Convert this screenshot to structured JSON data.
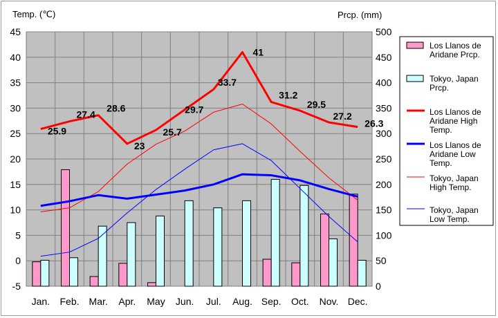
{
  "chart_data": {
    "type": "bar",
    "title": "",
    "categories": [
      "Jan.",
      "Feb.",
      "Mar.",
      "Apr.",
      "May",
      "Jun.",
      "Jul.",
      "Aug.",
      "Sep.",
      "Oct.",
      "Nov.",
      "Dec."
    ],
    "y_left": {
      "label": "Temp. (℃)",
      "range": [
        -5,
        45
      ],
      "ticks": [
        -5,
        0,
        5,
        10,
        15,
        20,
        25,
        30,
        35,
        40,
        45
      ]
    },
    "y_right": {
      "label": "Prcp. (mm)",
      "range": [
        0,
        500
      ],
      "ticks": [
        0,
        50,
        100,
        150,
        200,
        250,
        300,
        350,
        400,
        450,
        500
      ]
    },
    "grid": true,
    "legend_position": "right",
    "series": [
      {
        "name": "Los Llanos de Aridane Prcp.",
        "kind": "bar",
        "axis": "right",
        "color": "#ff99cc",
        "values": [
          48,
          229,
          19,
          45,
          7,
          0,
          0,
          0,
          53,
          46,
          142,
          181
        ]
      },
      {
        "name": "Tokyo, Japan Prcp.",
        "kind": "bar",
        "axis": "right",
        "color": "#ccffff",
        "values": [
          51,
          56,
          118,
          125,
          138,
          168,
          154,
          168,
          210,
          198,
          93,
          51
        ]
      },
      {
        "name": "Los Llanos de Aridane High Temp.",
        "kind": "line",
        "axis": "left",
        "color": "#ff0000",
        "width": 3,
        "values": [
          25.9,
          27.4,
          28.6,
          23,
          25.7,
          29.7,
          33.7,
          41,
          31.2,
          29.5,
          27.2,
          26.3
        ],
        "labels": [
          "25.9",
          "27.4",
          "28.6",
          "23",
          "25.7",
          "29.7",
          "33.7",
          "41",
          "31.2",
          "29.5",
          "27.2",
          "26.3"
        ]
      },
      {
        "name": "Los Llanos de Aridane Low Temp.",
        "kind": "line",
        "axis": "left",
        "color": "#0000ff",
        "width": 3,
        "values": [
          10.8,
          11.7,
          12.9,
          12.2,
          13.0,
          13.8,
          15.0,
          17.0,
          16.8,
          15.8,
          14.1,
          12.6
        ]
      },
      {
        "name": "Tokyo, Japan High Temp.",
        "kind": "line",
        "axis": "left",
        "color": "#ff0000",
        "width": 1,
        "values": [
          9.6,
          10.4,
          13.6,
          19.0,
          22.9,
          25.5,
          29.2,
          30.8,
          26.9,
          21.5,
          16.3,
          11.9
        ]
      },
      {
        "name": "Tokyo, Japan Low Temp.",
        "kind": "line",
        "axis": "left",
        "color": "#0000ff",
        "width": 1,
        "values": [
          0.9,
          1.7,
          4.4,
          9.4,
          14.0,
          18.0,
          21.8,
          23.0,
          19.7,
          14.2,
          8.7,
          3.7
        ]
      }
    ]
  }
}
